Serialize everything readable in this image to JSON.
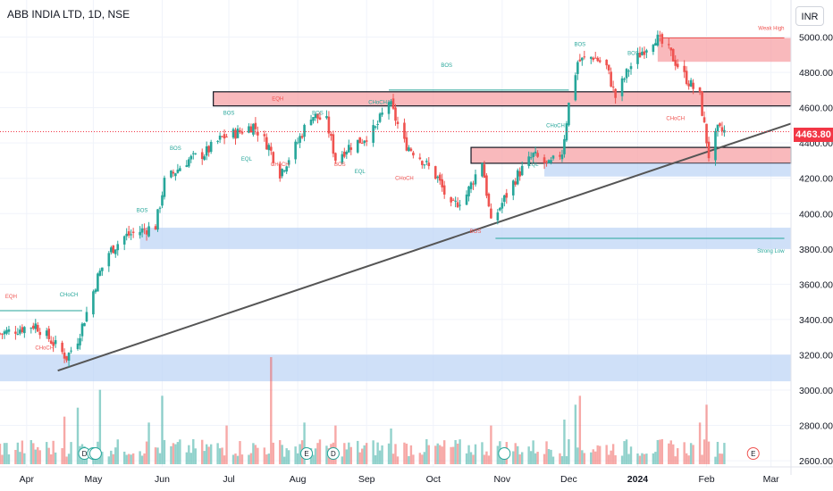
{
  "header": {
    "symbol_title": "ABB INDIA LTD, 1D, NSE",
    "currency": "INR"
  },
  "last_price": "4463.80",
  "colors": {
    "up": "#26a69a",
    "down": "#ef5350",
    "supply": "#f7a1a6",
    "demand": "#bbd3f5",
    "trendline": "#555555"
  },
  "chart_data": {
    "type": "candlestick",
    "title": "ABB INDIA LTD, 1D, NSE",
    "currency": "INR",
    "y_axis": {
      "ticks": [
        5000,
        4800,
        4600,
        4400,
        4200,
        4000,
        3800,
        3600,
        3400,
        3200,
        3000,
        2800,
        2600
      ],
      "tick_labels": [
        "5000.00",
        "4800.00",
        "4600.00",
        "4400.00",
        "4200.00",
        "4000.00",
        "3800.00",
        "3600.00",
        "3400.00",
        "3200.00",
        "3000.00",
        "2800.00",
        "2600.00"
      ],
      "range": [
        2565,
        5210
      ]
    },
    "x_axis": {
      "start": "2023-03-20",
      "end": "2024-03-10",
      "labels": [
        {
          "text": "Apr",
          "date": "2023-04-01"
        },
        {
          "text": "May",
          "date": "2023-05-01"
        },
        {
          "text": "Jun",
          "date": "2023-06-01"
        },
        {
          "text": "Jul",
          "date": "2023-07-01"
        },
        {
          "text": "Aug",
          "date": "2023-08-01"
        },
        {
          "text": "Sep",
          "date": "2023-09-01"
        },
        {
          "text": "Oct",
          "date": "2023-10-01"
        },
        {
          "text": "Nov",
          "date": "2023-11-01"
        },
        {
          "text": "Dec",
          "date": "2023-12-01"
        },
        {
          "text": "2024",
          "date": "2024-01-01"
        },
        {
          "text": "Feb",
          "date": "2024-02-01"
        },
        {
          "text": "Mar",
          "date": "2024-03-01"
        }
      ]
    },
    "price_path": [
      {
        "date": "2023-03-20",
        "close": 3320
      },
      {
        "date": "2023-04-05",
        "close": 3370
      },
      {
        "date": "2023-04-12",
        "close": 3280
      },
      {
        "date": "2023-04-19",
        "close": 3185
      },
      {
        "date": "2023-04-24",
        "close": 3290
      },
      {
        "date": "2023-04-28",
        "close": 3440
      },
      {
        "date": "2023-05-03",
        "close": 3640
      },
      {
        "date": "2023-05-08",
        "close": 3780
      },
      {
        "date": "2023-05-15",
        "close": 3870
      },
      {
        "date": "2023-05-22",
        "close": 3900
      },
      {
        "date": "2023-05-29",
        "close": 3930
      },
      {
        "date": "2023-06-02",
        "close": 4180
      },
      {
        "date": "2023-06-12",
        "close": 4300
      },
      {
        "date": "2023-06-20",
        "close": 4340
      },
      {
        "date": "2023-06-28",
        "close": 4430
      },
      {
        "date": "2023-07-05",
        "close": 4460
      },
      {
        "date": "2023-07-12",
        "close": 4500
      },
      {
        "date": "2023-07-19",
        "close": 4380
      },
      {
        "date": "2023-07-24",
        "close": 4230
      },
      {
        "date": "2023-07-31",
        "close": 4380
      },
      {
        "date": "2023-08-07",
        "close": 4560
      },
      {
        "date": "2023-08-14",
        "close": 4520
      },
      {
        "date": "2023-08-18",
        "close": 4310
      },
      {
        "date": "2023-08-24",
        "close": 4380
      },
      {
        "date": "2023-08-30",
        "close": 4420
      },
      {
        "date": "2023-09-05",
        "close": 4480
      },
      {
        "date": "2023-09-11",
        "close": 4640
      },
      {
        "date": "2023-09-18",
        "close": 4400
      },
      {
        "date": "2023-09-25",
        "close": 4320
      },
      {
        "date": "2023-10-03",
        "close": 4200
      },
      {
        "date": "2023-10-09",
        "close": 4030
      },
      {
        "date": "2023-10-16",
        "close": 4110
      },
      {
        "date": "2023-10-23",
        "close": 4300
      },
      {
        "date": "2023-10-27",
        "close": 3940
      },
      {
        "date": "2023-11-01",
        "close": 4060
      },
      {
        "date": "2023-11-08",
        "close": 4220
      },
      {
        "date": "2023-11-15",
        "close": 4330
      },
      {
        "date": "2023-11-22",
        "close": 4270
      },
      {
        "date": "2023-11-28",
        "close": 4350
      },
      {
        "date": "2023-12-01",
        "close": 4620
      },
      {
        "date": "2023-12-05",
        "close": 4860
      },
      {
        "date": "2023-12-12",
        "close": 4890
      },
      {
        "date": "2023-12-18",
        "close": 4830
      },
      {
        "date": "2023-12-22",
        "close": 4660
      },
      {
        "date": "2023-12-28",
        "close": 4820
      },
      {
        "date": "2024-01-03",
        "close": 4920
      },
      {
        "date": "2024-01-09",
        "close": 5000
      },
      {
        "date": "2024-01-15",
        "close": 4920
      },
      {
        "date": "2024-01-22",
        "close": 4780
      },
      {
        "date": "2024-01-29",
        "close": 4660
      },
      {
        "date": "2024-02-02",
        "close": 4330
      },
      {
        "date": "2024-02-06",
        "close": 4470
      },
      {
        "date": "2024-02-09",
        "close": 4463.8
      }
    ],
    "volume": {
      "range": [
        0,
        4200
      ],
      "bars": [
        {
          "date": "2023-04-18",
          "v": 1600
        },
        {
          "date": "2023-04-24",
          "v": 1900
        },
        {
          "date": "2023-05-04",
          "v": 2500
        },
        {
          "date": "2023-05-26",
          "v": 1400
        },
        {
          "date": "2023-06-01",
          "v": 2300
        },
        {
          "date": "2023-06-30",
          "v": 1300
        },
        {
          "date": "2023-07-20",
          "v": 3600
        },
        {
          "date": "2023-08-04",
          "v": 1400
        },
        {
          "date": "2023-08-18",
          "v": 1300
        },
        {
          "date": "2023-09-12",
          "v": 1200
        },
        {
          "date": "2023-10-27",
          "v": 1300
        },
        {
          "date": "2023-11-29",
          "v": 1500
        },
        {
          "date": "2023-12-04",
          "v": 2000
        },
        {
          "date": "2023-12-06",
          "v": 2300
        },
        {
          "date": "2024-01-29",
          "v": 1400
        },
        {
          "date": "2024-02-01",
          "v": 2000
        }
      ]
    },
    "zones": [
      {
        "kind": "supply",
        "from": "2023-06-24",
        "to": "2024-03-10",
        "low": 4610,
        "high": 4690
      },
      {
        "kind": "supply",
        "from": "2023-10-18",
        "to": "2024-03-10",
        "low": 4285,
        "high": 4375
      },
      {
        "kind": "supply",
        "from": "2024-01-10",
        "to": "2024-03-10",
        "low": 4860,
        "high": 4995
      },
      {
        "kind": "demand",
        "from": "2023-05-22",
        "to": "2024-03-10",
        "low": 3800,
        "high": 3920
      },
      {
        "kind": "demand",
        "from": "2023-03-20",
        "to": "2024-03-10",
        "low": 3050,
        "high": 3200
      },
      {
        "kind": "demand",
        "from": "2023-11-20",
        "to": "2024-03-10",
        "low": 4210,
        "high": 4285
      }
    ],
    "trendline": {
      "from": {
        "date": "2023-04-15",
        "price": 3110
      },
      "to": {
        "date": "2024-03-10",
        "price": 4510
      }
    },
    "levels": [
      {
        "from": "2023-03-20",
        "to": "2023-04-26",
        "price": 3450,
        "color": "#26a69a"
      },
      {
        "from": "2023-10-29",
        "to": "2024-03-07",
        "price": 3860,
        "color": "#26a69a"
      },
      {
        "from": "2023-09-11",
        "to": "2023-12-01",
        "price": 4700,
        "color": "#26a69a"
      },
      {
        "from": "2024-01-12",
        "to": "2024-03-07",
        "price": 4995,
        "color": "#ef5350"
      }
    ],
    "annotations": [
      {
        "text": "EQH",
        "date": "2023-03-25",
        "price": 3520,
        "color": "#ef5350"
      },
      {
        "text": "CHoCH",
        "date": "2023-04-20",
        "price": 3530,
        "color": "#26a69a"
      },
      {
        "text": "CHoCH",
        "date": "2023-04-09",
        "price": 3230,
        "color": "#ef5350"
      },
      {
        "text": "BOS",
        "date": "2023-05-23",
        "price": 4010,
        "color": "#26a69a"
      },
      {
        "text": "BOS",
        "date": "2023-06-07",
        "price": 4360,
        "color": "#26a69a"
      },
      {
        "text": "BOS",
        "date": "2023-07-01",
        "price": 4560,
        "color": "#26a69a"
      },
      {
        "text": "EQL",
        "date": "2023-07-09",
        "price": 4300,
        "color": "#26a69a"
      },
      {
        "text": "EQH",
        "date": "2023-07-23",
        "price": 4640,
        "color": "#ef5350"
      },
      {
        "text": "CHoCH",
        "date": "2023-07-24",
        "price": 4270,
        "color": "#ef5350"
      },
      {
        "text": "BOS",
        "date": "2023-08-10",
        "price": 4560,
        "color": "#26a69a"
      },
      {
        "text": "BOS",
        "date": "2023-08-20",
        "price": 4270,
        "color": "#ef5350"
      },
      {
        "text": "EQL",
        "date": "2023-08-29",
        "price": 4230,
        "color": "#26a69a"
      },
      {
        "text": "CHoCH",
        "date": "2023-09-06",
        "price": 4620,
        "color": "#26a69a"
      },
      {
        "text": "CHoCH",
        "date": "2023-09-18",
        "price": 4190,
        "color": "#ef5350"
      },
      {
        "text": "BOS",
        "date": "2023-10-07",
        "price": 4830,
        "color": "#26a69a"
      },
      {
        "text": "BOS",
        "date": "2023-10-20",
        "price": 3890,
        "color": "#ef5350"
      },
      {
        "text": "CHoCH",
        "date": "2023-11-25",
        "price": 4490,
        "color": "#26a69a"
      },
      {
        "text": "EQL",
        "date": "2023-11-15",
        "price": 4270,
        "color": "#26a69a"
      },
      {
        "text": "BOS",
        "date": "2023-12-06",
        "price": 4950,
        "color": "#26a69a"
      },
      {
        "text": "BOS",
        "date": "2023-12-30",
        "price": 4900,
        "color": "#26a69a"
      },
      {
        "text": "CHoCH",
        "date": "2024-01-18",
        "price": 4530,
        "color": "#ef5350"
      },
      {
        "text": "Weak High",
        "date": "2024-03-07",
        "price": 5040,
        "color": "#ef5350"
      },
      {
        "text": "Strong Low",
        "date": "2024-03-07",
        "price": 3780,
        "color": "#26a69a"
      }
    ],
    "event_markers": [
      {
        "text": "D",
        "date": "2023-04-27"
      },
      {
        "text": "E",
        "date": "2023-05-01"
      },
      {
        "text": "",
        "date": "2023-05-02"
      },
      {
        "text": "E",
        "date": "2023-08-05"
      },
      {
        "text": "D",
        "date": "2023-08-17"
      },
      {
        "text": "",
        "date": "2023-11-02"
      },
      {
        "text": "E",
        "date": "2024-02-22"
      }
    ]
  }
}
